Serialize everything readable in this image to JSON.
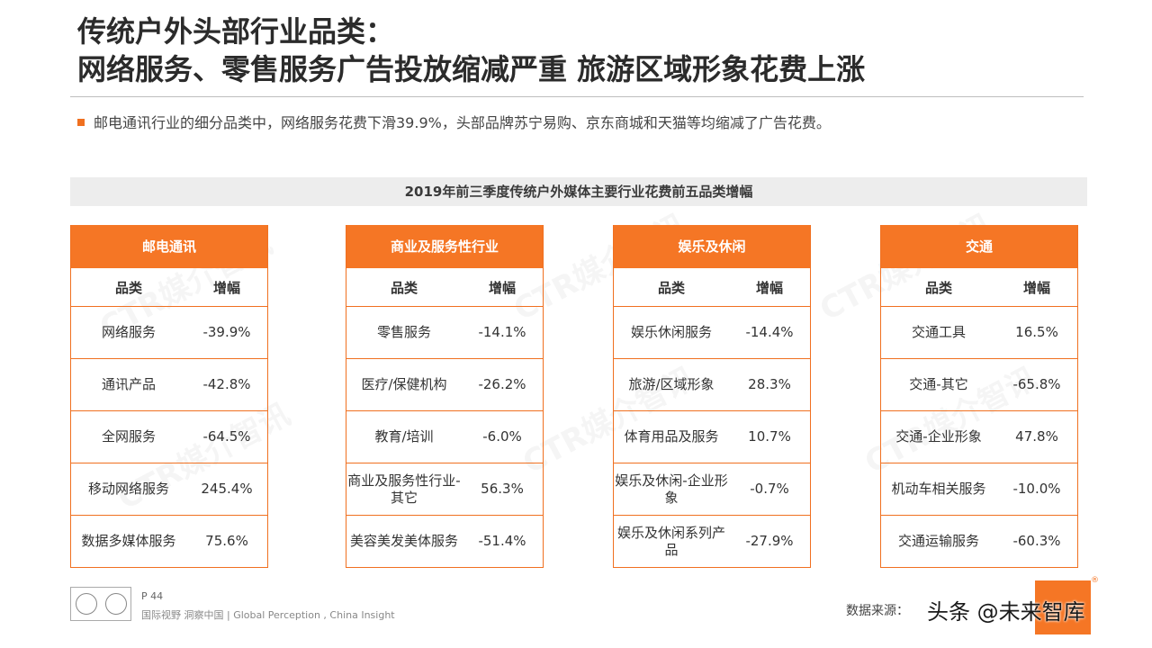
{
  "title": {
    "line1": "传统户外头部行业品类：",
    "line2": "网络服务、零售服务广告投放缩减严重 旅游区域形象花费上涨"
  },
  "bullet": "邮电通讯行业的细分品类中，网络服务花费下滑39.9%，头部品牌苏宁易购、京东商城和天猫等均缩减了广告花费。",
  "chart_title": "2019年前三季度传统户外媒体主要行业花费前五品类增幅",
  "column_headers": {
    "category": "品类",
    "growth": "增幅"
  },
  "panels": [
    {
      "name": "邮电通讯",
      "rows": [
        {
          "category": "网络服务",
          "growth": "-39.9%"
        },
        {
          "category": "通讯产品",
          "growth": "-42.8%"
        },
        {
          "category": "全网服务",
          "growth": "-64.5%"
        },
        {
          "category": "移动网络服务",
          "growth": "245.4%"
        },
        {
          "category": "数据多媒体服务",
          "growth": "75.6%"
        }
      ]
    },
    {
      "name": "商业及服务性行业",
      "rows": [
        {
          "category": "零售服务",
          "growth": "-14.1%"
        },
        {
          "category": "医疗/保健机构",
          "growth": "-26.2%"
        },
        {
          "category": "教育/培训",
          "growth": "-6.0%"
        },
        {
          "category": "商业及服务性行业-其它",
          "growth": "56.3%"
        },
        {
          "category": "美容美发美体服务",
          "growth": "-51.4%"
        }
      ]
    },
    {
      "name": "娱乐及休闲",
      "rows": [
        {
          "category": "娱乐休闲服务",
          "growth": "-14.4%"
        },
        {
          "category": "旅游/区域形象",
          "growth": "28.3%"
        },
        {
          "category": "体育用品及服务",
          "growth": "10.7%"
        },
        {
          "category": "娱乐及休闲-企业形象",
          "growth": "-0.7%"
        },
        {
          "category": "娱乐及休闲系列产品",
          "growth": "-27.9%"
        }
      ]
    },
    {
      "name": "交通",
      "rows": [
        {
          "category": "交通工具",
          "growth": "16.5%"
        },
        {
          "category": "交通-其它",
          "growth": "-65.8%"
        },
        {
          "category": "交通-企业形象",
          "growth": "47.8%"
        },
        {
          "category": "机动车相关服务",
          "growth": "-10.0%"
        },
        {
          "category": "交通运输服务",
          "growth": "-60.3%"
        }
      ]
    }
  ],
  "watermark_text": "CTR媒介智讯",
  "footer": {
    "page": "P 44",
    "slogan": "国际视野  洞察中国 | Global Perception , China Insight",
    "source": "数据来源：",
    "overlay_credit": "头条 @未来智库",
    "reg_mark": "®"
  },
  "colors": {
    "accent": "#f57625",
    "title_bar_bg": "#ededed"
  }
}
